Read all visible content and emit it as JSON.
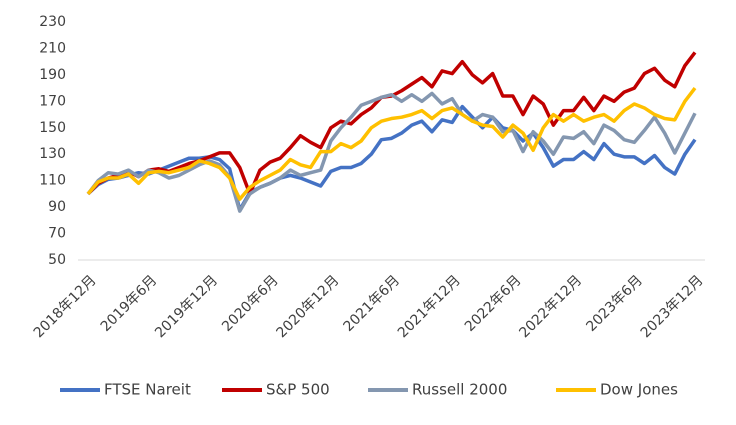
{
  "chart_data": {
    "type": "line",
    "categories": [
      "2018年12月",
      null,
      null,
      null,
      null,
      null,
      "2019年6月",
      null,
      null,
      null,
      null,
      null,
      "2019年12月",
      null,
      null,
      null,
      null,
      null,
      "2020年6月",
      null,
      null,
      null,
      null,
      null,
      "2020年12月",
      null,
      null,
      null,
      null,
      null,
      "2021年6月",
      null,
      null,
      null,
      null,
      null,
      "2021年12月",
      null,
      null,
      null,
      null,
      null,
      "2022年6月",
      null,
      null,
      null,
      null,
      null,
      "2022年12月",
      null,
      null,
      null,
      null,
      null,
      "2023年6月",
      null,
      null,
      null,
      null,
      null,
      "2023年12月"
    ],
    "series": [
      {
        "name": "FTSE Nareit",
        "color": "#4472c4",
        "values": [
          100,
          107,
          111,
          112,
          114,
          116,
          115,
          118,
          121,
          124,
          127,
          127,
          128,
          126,
          119,
          88,
          101,
          105,
          108,
          112,
          114,
          112,
          109,
          106,
          117,
          120,
          120,
          123,
          130,
          141,
          142,
          146,
          152,
          155,
          147,
          156,
          154,
          166,
          158,
          150,
          158,
          150,
          148,
          140,
          146,
          135,
          121,
          126,
          126,
          132,
          126,
          138,
          130,
          128,
          128,
          123,
          129,
          120,
          115,
          130,
          141
        ]
      },
      {
        "name": "S&P 500",
        "color": "#c00000",
        "values": [
          100,
          108,
          112,
          114,
          117,
          113,
          118,
          119,
          117,
          120,
          123,
          125,
          128,
          131,
          131,
          120,
          100,
          118,
          124,
          127,
          135,
          144,
          139,
          135,
          150,
          155,
          153,
          160,
          165,
          173,
          174,
          178,
          183,
          188,
          181,
          193,
          191,
          200,
          190,
          184,
          191,
          174,
          174,
          160,
          174,
          168,
          152,
          163,
          163,
          173,
          163,
          174,
          170,
          177,
          180,
          191,
          195,
          186,
          181,
          197,
          207
        ]
      },
      {
        "name": "Russell 2000",
        "color": "#8497b0",
        "values": [
          100,
          110,
          116,
          115,
          118,
          113,
          118,
          116,
          112,
          114,
          118,
          122,
          125,
          122,
          113,
          87,
          100,
          105,
          108,
          112,
          118,
          114,
          116,
          118,
          140,
          150,
          158,
          167,
          170,
          173,
          175,
          170,
          175,
          170,
          176,
          168,
          172,
          160,
          155,
          160,
          158,
          147,
          148,
          132,
          147,
          140,
          130,
          143,
          142,
          147,
          138,
          152,
          148,
          141,
          139,
          148,
          158,
          146,
          131,
          146,
          161
        ]
      },
      {
        "name": "Dow Jones",
        "color": "#ffc000",
        "values": [
          100,
          109,
          112,
          112,
          115,
          108,
          116,
          117,
          116,
          118,
          120,
          125,
          123,
          120,
          112,
          96,
          105,
          110,
          114,
          118,
          126,
          122,
          120,
          132,
          132,
          138,
          135,
          140,
          150,
          155,
          157,
          158,
          160,
          163,
          157,
          163,
          165,
          160,
          155,
          152,
          151,
          143,
          152,
          146,
          133,
          150,
          160,
          155,
          160,
          155,
          158,
          160,
          155,
          163,
          168,
          165,
          160,
          157,
          156,
          170,
          180
        ]
      }
    ],
    "ylim": [
      50,
      230
    ],
    "yticks": [
      50,
      70,
      90,
      110,
      130,
      150,
      170,
      190,
      210,
      230
    ],
    "grid": false,
    "legend": "bottom"
  }
}
